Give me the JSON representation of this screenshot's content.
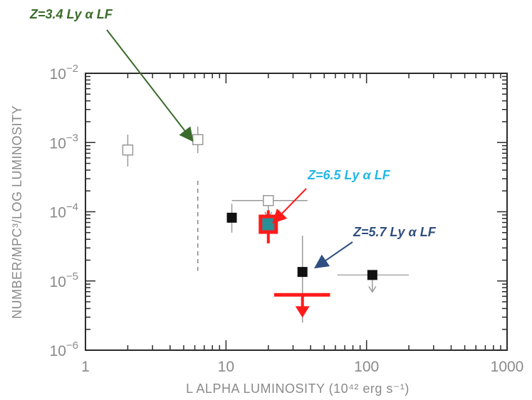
{
  "chart_data": {
    "type": "scatter",
    "title": "",
    "xlabel": "L ALPHA LUMINOSITY (10⁴² erg s⁻¹)",
    "ylabel": "NUMBER/MPC³/LOG LUMINOSITY",
    "xscale": "log",
    "yscale": "log",
    "xlim": [
      1,
      1000
    ],
    "ylim": [
      1e-06,
      0.01
    ],
    "x_ticks": [
      {
        "value": 1,
        "label": "1"
      },
      {
        "value": 10,
        "label": "10"
      },
      {
        "value": 100,
        "label": "100"
      },
      {
        "value": 1000,
        "label": "1000"
      }
    ],
    "y_ticks": [
      {
        "value": 0.01,
        "base": "10",
        "exp": "−2"
      },
      {
        "value": 0.001,
        "base": "10",
        "exp": "−3"
      },
      {
        "value": 0.0001,
        "base": "10",
        "exp": "−4"
      },
      {
        "value": 1e-05,
        "base": "10",
        "exp": "−5"
      },
      {
        "value": 1e-06,
        "base": "10",
        "exp": "−6"
      }
    ],
    "grid": false,
    "series": [
      {
        "name": "Z=3.4 Ly α LF",
        "color": "#999999",
        "marker": "open-square",
        "points": [
          {
            "x": 2.0,
            "y": 0.00078,
            "ylo": 0.00045,
            "yhi": 0.0013
          },
          {
            "x": 6.3,
            "y": 0.0011,
            "ylo": 0.0007,
            "yhi": 0.0017
          }
        ]
      },
      {
        "name": "Z=5.7 Ly α LF",
        "color": "#111111",
        "marker": "filled-square",
        "points": [
          {
            "x": 11,
            "y": 8.2e-05,
            "ylo": 5e-05,
            "yhi": 0.00013
          },
          {
            "x": 35,
            "y": 1.35e-05,
            "ylo": 2.5e-06,
            "yhi": 4.5e-05
          },
          {
            "x": 110,
            "y": 1.22e-05,
            "xlo": 62,
            "xhi": 200
          }
        ]
      },
      {
        "name": "Z=6.5 Ly α LF",
        "color": "#ff1a1a",
        "marker": "square",
        "points": [
          {
            "x": 20,
            "y": 6.6e-05,
            "ylo": 3.5e-05,
            "yhi": 0.000105
          },
          {
            "x": 35,
            "y": 6.3e-06,
            "xlo": 22,
            "xhi": 55,
            "upper_limit": true
          }
        ]
      }
    ],
    "extra_marks": [
      {
        "kind": "open-square-upper-limit",
        "x": 20,
        "y": 0.000145,
        "xlo": 11,
        "xhi": 38,
        "color": "#999999"
      },
      {
        "kind": "dashed-vline",
        "x": 6.3,
        "y_from": 0.00028,
        "y_to": 1.4e-05,
        "color": "#888888"
      }
    ],
    "annotations": [
      {
        "text": "Z=3.4 Ly α LF",
        "color": "#3a6b2a",
        "arrow_to": {
          "x": 5.7,
          "y": 0.0011
        }
      },
      {
        "text": "Z=6.5 Ly α LF",
        "color": "#22b7e8",
        "arrow_to": {
          "x": 22,
          "y": 7.2e-05
        }
      },
      {
        "text": "Z=5.7 Ly α LF",
        "color": "#2f4f80",
        "arrow_to": {
          "x": 44,
          "y": 1.6e-05
        }
      }
    ]
  }
}
